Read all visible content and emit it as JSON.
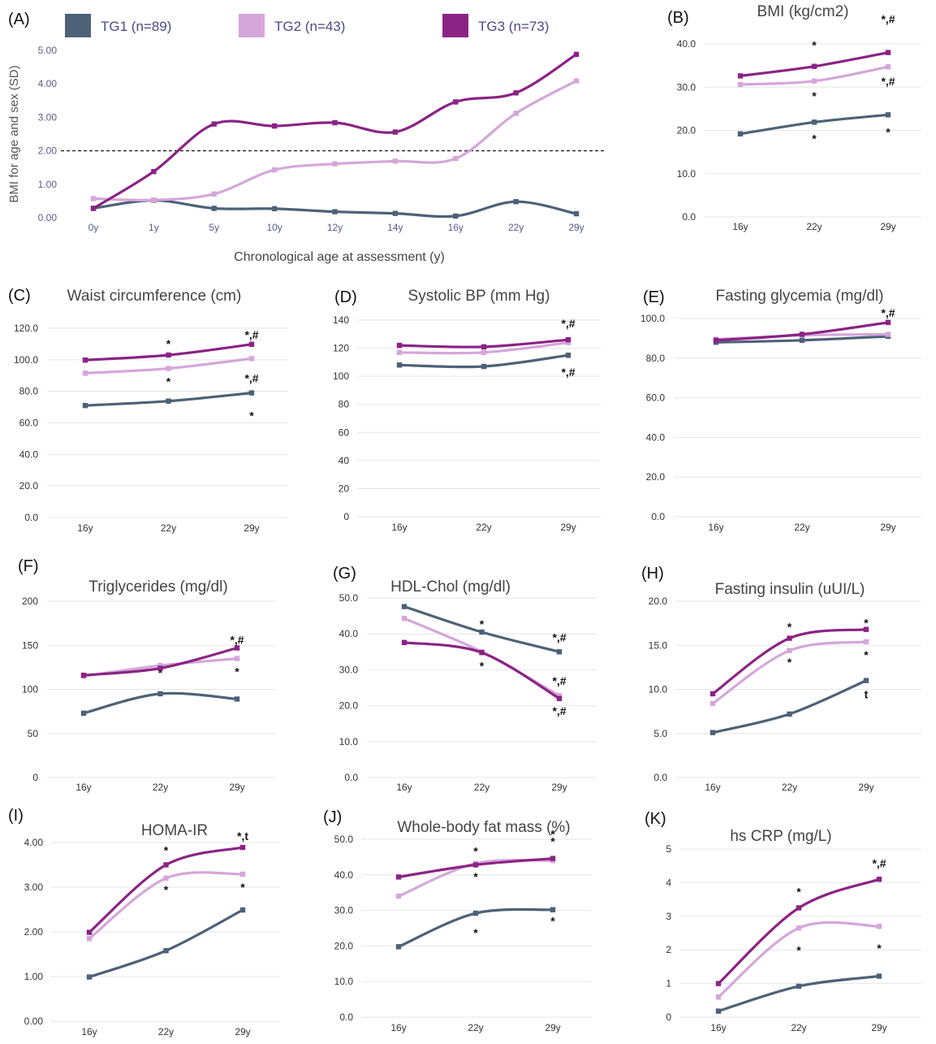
{
  "colors": {
    "TG1": "#4d6178",
    "TG2": "#d5a6d9",
    "TG3": "#8b2385",
    "grid": "#e6e6e6",
    "ref": "#222222"
  },
  "legend": [
    {
      "key": "TG1",
      "label": "TG1  (n=89)"
    },
    {
      "key": "TG2",
      "label": "TG2  (n=43)"
    },
    {
      "key": "TG3",
      "label": "TG3  (n=73)"
    }
  ],
  "chart_data": [
    {
      "type": "line",
      "panel": "(A)",
      "title": "",
      "ylabel": "BMI for age and sex (SD)",
      "xlabel": "Chronological age at assessment (y)",
      "categories": [
        "0y",
        "1y",
        "5y",
        "10y",
        "12y",
        "14y",
        "16y",
        "22y",
        "29y"
      ],
      "ylim": [
        0,
        5
      ],
      "yticks": [
        "0.00",
        "1.00",
        "2.00",
        "3.00",
        "4.00",
        "5.00"
      ],
      "reference_line": 2.0,
      "series": [
        {
          "name": "TG1",
          "values": [
            0.28,
            0.52,
            0.28,
            0.27,
            0.18,
            0.13,
            0.05,
            0.48,
            0.12
          ],
          "annotations": []
        },
        {
          "name": "TG2",
          "values": [
            0.57,
            0.53,
            0.71,
            1.43,
            1.61,
            1.69,
            1.77,
            3.12,
            4.09
          ],
          "annotations": []
        },
        {
          "name": "TG3",
          "values": [
            0.28,
            1.38,
            2.8,
            2.74,
            2.84,
            2.56,
            3.46,
            3.73,
            4.88
          ],
          "annotations": []
        }
      ]
    },
    {
      "type": "line",
      "panel": "(B)",
      "title": "BMI (kg/cm2)",
      "categories": [
        "16y",
        "22y",
        "29y"
      ],
      "ylim": [
        0,
        40
      ],
      "yticks": [
        "0.0",
        "10.0",
        "20.0",
        "30.0",
        "40.0"
      ],
      "series": [
        {
          "name": "TG1",
          "values": [
            19.2,
            21.9,
            23.6
          ],
          "annotations": [
            "",
            "*",
            "*"
          ]
        },
        {
          "name": "TG2",
          "values": [
            30.6,
            31.4,
            34.7
          ],
          "annotations": [
            "",
            "*",
            "*,#"
          ]
        },
        {
          "name": "TG3",
          "values": [
            32.6,
            34.8,
            38.0
          ],
          "annotations": [
            "",
            "*",
            "*,#"
          ]
        }
      ]
    },
    {
      "type": "line",
      "panel": "(C)",
      "title": "Waist circumference (cm)",
      "categories": [
        "16y",
        "22y",
        "29y"
      ],
      "ylim": [
        0,
        120
      ],
      "yticks": [
        "0.0",
        "20.0",
        "40.0",
        "60.0",
        "80.0",
        "100.0",
        "120.0"
      ],
      "series": [
        {
          "name": "TG1",
          "values": [
            71.0,
            73.8,
            79.0
          ],
          "annotations": [
            "",
            "",
            "*"
          ]
        },
        {
          "name": "TG2",
          "values": [
            91.5,
            94.5,
            100.8
          ],
          "annotations": [
            "",
            "*",
            "*,#"
          ]
        },
        {
          "name": "TG3",
          "values": [
            99.8,
            103.0,
            109.8
          ],
          "annotations": [
            "",
            "*",
            "*,#"
          ]
        }
      ]
    },
    {
      "type": "line",
      "panel": "(D)",
      "title": "Systolic BP (mm Hg)",
      "categories": [
        "16y",
        "22y",
        "29y"
      ],
      "ylim": [
        0,
        140
      ],
      "yticks": [
        "0",
        "20",
        "40",
        "60",
        "80",
        "100",
        "120",
        "140"
      ],
      "series": [
        {
          "name": "TG1",
          "values": [
            108,
            107,
            115
          ],
          "annotations": [
            "",
            "",
            "*,#"
          ]
        },
        {
          "name": "TG2",
          "values": [
            117,
            117,
            124
          ],
          "annotations": [
            "",
            "",
            ""
          ]
        },
        {
          "name": "TG3",
          "values": [
            122,
            121,
            126
          ],
          "annotations": [
            "",
            "",
            "*,#"
          ]
        }
      ]
    },
    {
      "type": "line",
      "panel": "(E)",
      "title": "Fasting glycemia (mg/dl)",
      "categories": [
        "16y",
        "22y",
        "29y"
      ],
      "ylim": [
        0,
        100
      ],
      "yticks": [
        "0.0",
        "20.0",
        "40.0",
        "60.0",
        "80.0",
        "100.0"
      ],
      "series": [
        {
          "name": "TG1",
          "values": [
            88.0,
            89.0,
            91.0
          ],
          "annotations": [
            "",
            "",
            ""
          ]
        },
        {
          "name": "TG2",
          "values": [
            89.5,
            91.5,
            92.0
          ],
          "annotations": [
            "",
            "",
            ""
          ]
        },
        {
          "name": "TG3",
          "values": [
            89.0,
            92.0,
            98.0
          ],
          "annotations": [
            "",
            "",
            "*,#"
          ]
        }
      ]
    },
    {
      "type": "line",
      "panel": "(F)",
      "title": "Triglycerides (mg/dl)",
      "categories": [
        "16y",
        "22y",
        "29y"
      ],
      "ylim": [
        0,
        200
      ],
      "yticks": [
        "0",
        "50",
        "100",
        "150",
        "200"
      ],
      "series": [
        {
          "name": "TG1",
          "values": [
            73,
            95,
            89
          ],
          "annotations": [
            "",
            "",
            ""
          ]
        },
        {
          "name": "TG2",
          "values": [
            115,
            127,
            135
          ],
          "annotations": [
            "",
            "*",
            "*"
          ]
        },
        {
          "name": "TG3",
          "values": [
            116,
            124,
            147
          ],
          "annotations": [
            "",
            "",
            "*,#"
          ]
        }
      ]
    },
    {
      "type": "line",
      "panel": "(G)",
      "title": "HDL-Chol (mg/dl)",
      "categories": [
        "16y",
        "22y",
        "29y"
      ],
      "ylim": [
        0,
        50
      ],
      "yticks": [
        "0.0",
        "10.0",
        "20.0",
        "30.0",
        "40.0",
        "50.0"
      ],
      "series": [
        {
          "name": "TG1",
          "values": [
            47.6,
            40.5,
            35.0
          ],
          "annotations": [
            "",
            "*",
            "*,#"
          ]
        },
        {
          "name": "TG2",
          "values": [
            44.3,
            35.0,
            22.8
          ],
          "annotations": [
            "",
            "*",
            "*,#"
          ]
        },
        {
          "name": "TG3",
          "values": [
            37.6,
            34.8,
            22.0
          ],
          "annotations": [
            "",
            "",
            "*,#"
          ]
        }
      ]
    },
    {
      "type": "line",
      "panel": "(H)",
      "title": "Fasting insulin (uUI/L)",
      "categories": [
        "16y",
        "22y",
        "29y"
      ],
      "ylim": [
        0,
        20
      ],
      "yticks": [
        "0.0",
        "5.0",
        "10.0",
        "15.0",
        "20.0"
      ],
      "series": [
        {
          "name": "TG1",
          "values": [
            5.1,
            7.2,
            11.0
          ],
          "annotations": [
            "",
            "",
            "t"
          ]
        },
        {
          "name": "TG2",
          "values": [
            8.4,
            14.4,
            15.4
          ],
          "annotations": [
            "",
            "*",
            "*"
          ]
        },
        {
          "name": "TG3",
          "values": [
            9.5,
            15.8,
            16.8
          ],
          "annotations": [
            "",
            "*",
            "*"
          ]
        }
      ]
    },
    {
      "type": "line",
      "panel": "(I)",
      "title": "HOMA-IR",
      "categories": [
        "16y",
        "22y",
        "29y"
      ],
      "ylim": [
        0,
        4
      ],
      "yticks": [
        "0.00",
        "1.00",
        "2.00",
        "3.00",
        "4.00"
      ],
      "series": [
        {
          "name": "TG1",
          "values": [
            0.99,
            1.58,
            2.49
          ],
          "annotations": [
            "",
            "",
            ""
          ]
        },
        {
          "name": "TG2",
          "values": [
            1.85,
            3.2,
            3.29
          ],
          "annotations": [
            "",
            "*",
            "*"
          ]
        },
        {
          "name": "TG3",
          "values": [
            1.99,
            3.5,
            3.89
          ],
          "annotations": [
            "",
            "*",
            "*,t"
          ]
        }
      ]
    },
    {
      "type": "line",
      "panel": "(J)",
      "title": "Whole-body fat mass (%)",
      "categories": [
        "16y",
        "22y",
        "29y"
      ],
      "ylim": [
        0,
        50
      ],
      "yticks": [
        "0.0",
        "10.0",
        "20.0",
        "30.0",
        "40.0",
        "50.0"
      ],
      "series": [
        {
          "name": "TG1",
          "values": [
            19.8,
            29.2,
            30.2
          ],
          "annotations": [
            "",
            "*",
            "*"
          ]
        },
        {
          "name": "TG2",
          "values": [
            34.0,
            43.2,
            44.0
          ],
          "annotations": [
            "",
            "*",
            "*"
          ]
        },
        {
          "name": "TG3",
          "values": [
            39.4,
            42.8,
            44.6
          ],
          "annotations": [
            "",
            "*",
            "*"
          ]
        }
      ]
    },
    {
      "type": "line",
      "panel": "(K)",
      "title": "hs CRP (mg/L)",
      "categories": [
        "16y",
        "22y",
        "29y"
      ],
      "ylim": [
        0,
        5
      ],
      "yticks": [
        "0",
        "1",
        "2",
        "3",
        "4",
        "5"
      ],
      "series": [
        {
          "name": "TG1",
          "values": [
            0.18,
            0.92,
            1.22
          ],
          "annotations": [
            "",
            "",
            ""
          ]
        },
        {
          "name": "TG2",
          "values": [
            0.6,
            2.65,
            2.7
          ],
          "annotations": [
            "",
            "*",
            "*"
          ]
        },
        {
          "name": "TG3",
          "values": [
            1.0,
            3.25,
            4.1
          ],
          "annotations": [
            "",
            "*",
            "*,#"
          ]
        }
      ]
    }
  ]
}
